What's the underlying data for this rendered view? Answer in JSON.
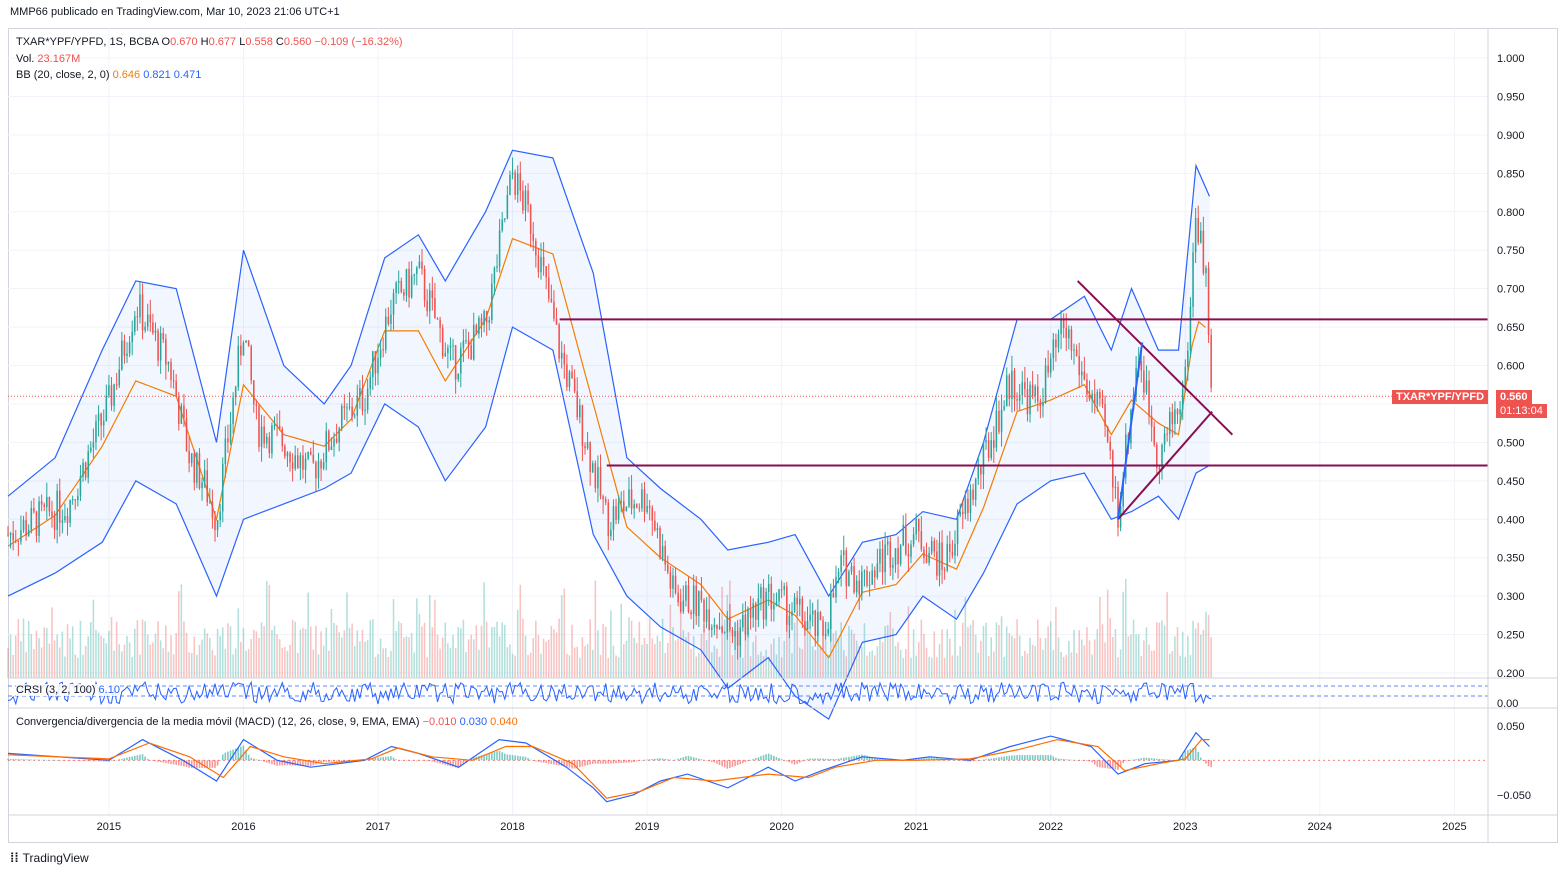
{
  "credit": "MMP66 publicado en TradingView.com, Mar 10, 2023 21:06 UTC+1",
  "legend": {
    "symbol": "TXAR*YPF/YPFD, 1S, BCBA",
    "o_label": "O",
    "o_value": "0.670",
    "h_label": "H",
    "h_value": "0.677",
    "l_label": "L",
    "l_value": "0.558",
    "c_label": "C",
    "c_value": "0.560",
    "change": "−0.109 (−16.32%)",
    "vol_label": "Vol.",
    "vol_value": "23.167M",
    "bb_label": "BB (20, close, 2, 0)",
    "bb_basis": "0.646",
    "bb_upper": "0.821",
    "bb_lower": "0.471"
  },
  "crsi_label": "CRSI (3, 2, 100)",
  "crsi_value": "6.10",
  "macd_label": "Convergencia/divergencia de la media móvil (MACD) (12, 26, close, 9, EMA, EMA)",
  "macd_values": [
    "−0.010",
    "0.030",
    "0.040"
  ],
  "price_tag": {
    "symbol": "TXAR*YPF/YPFD",
    "price": "0.560",
    "countdown": "01:13:04"
  },
  "footer": "TradingView",
  "colors": {
    "up": "#26a69a",
    "down": "#ef5350",
    "bb_band": "#2962ff",
    "bb_basis": "#f57c00",
    "trendline": "#880e4f",
    "macd": "#2962ff",
    "signal": "#ff6d00"
  },
  "chart_data": [
    {
      "type": "candlestick",
      "title": "TXAR*YPF/YPFD, 1S, BCBA",
      "x_ticks": [
        "2015",
        "2016",
        "2017",
        "2018",
        "2019",
        "2020",
        "2021",
        "2022",
        "2023",
        "2024",
        "2025"
      ],
      "y_ticks": [
        "1.000",
        "0.950",
        "0.900",
        "0.850",
        "0.800",
        "0.750",
        "0.700",
        "0.650",
        "0.600",
        "0.550",
        "0.500",
        "0.450",
        "0.400",
        "0.350",
        "0.300",
        "0.250",
        "0.200"
      ],
      "ylim": [
        0.2,
        1.0
      ],
      "xlim": [
        2014.25,
        2025.25
      ],
      "price_path": [
        [
          2014.25,
          0.38
        ],
        [
          2014.7,
          0.42
        ],
        [
          2015.0,
          0.55
        ],
        [
          2015.2,
          0.68
        ],
        [
          2015.45,
          0.6
        ],
        [
          2015.6,
          0.48
        ],
        [
          2015.7,
          0.45
        ],
        [
          2015.8,
          0.4
        ],
        [
          2016.0,
          0.65
        ],
        [
          2016.1,
          0.52
        ],
        [
          2016.3,
          0.5
        ],
        [
          2016.5,
          0.46
        ],
        [
          2016.7,
          0.52
        ],
        [
          2016.9,
          0.56
        ],
        [
          2017.1,
          0.68
        ],
        [
          2017.3,
          0.72
        ],
        [
          2017.55,
          0.6
        ],
        [
          2017.8,
          0.65
        ],
        [
          2018.0,
          0.85
        ],
        [
          2018.15,
          0.78
        ],
        [
          2018.35,
          0.62
        ],
        [
          2018.55,
          0.5
        ],
        [
          2018.7,
          0.4
        ],
        [
          2018.85,
          0.42
        ],
        [
          2019.0,
          0.43
        ],
        [
          2019.2,
          0.3
        ],
        [
          2019.4,
          0.29
        ],
        [
          2019.65,
          0.25
        ],
        [
          2019.9,
          0.3
        ],
        [
          2020.1,
          0.28
        ],
        [
          2020.3,
          0.25
        ],
        [
          2020.45,
          0.34
        ],
        [
          2020.6,
          0.32
        ],
        [
          2020.8,
          0.36
        ],
        [
          2021.0,
          0.38
        ],
        [
          2021.2,
          0.34
        ],
        [
          2021.45,
          0.45
        ],
        [
          2021.7,
          0.58
        ],
        [
          2021.9,
          0.55
        ],
        [
          2022.1,
          0.65
        ],
        [
          2022.25,
          0.58
        ],
        [
          2022.4,
          0.52
        ],
        [
          2022.5,
          0.41
        ],
        [
          2022.65,
          0.62
        ],
        [
          2022.8,
          0.48
        ],
        [
          2022.95,
          0.55
        ],
        [
          2023.0,
          0.58
        ],
        [
          2023.08,
          0.8
        ],
        [
          2023.15,
          0.72
        ],
        [
          2023.2,
          0.56
        ]
      ],
      "bollinger": {
        "upper": [
          [
            2014.25,
            0.43
          ],
          [
            2014.6,
            0.48
          ],
          [
            2014.95,
            0.62
          ],
          [
            2015.2,
            0.71
          ],
          [
            2015.5,
            0.7
          ],
          [
            2015.8,
            0.5
          ],
          [
            2016.0,
            0.75
          ],
          [
            2016.3,
            0.6
          ],
          [
            2016.6,
            0.55
          ],
          [
            2016.8,
            0.6
          ],
          [
            2017.05,
            0.74
          ],
          [
            2017.3,
            0.77
          ],
          [
            2017.5,
            0.71
          ],
          [
            2017.8,
            0.8
          ],
          [
            2018.0,
            0.88
          ],
          [
            2018.3,
            0.87
          ],
          [
            2018.6,
            0.72
          ],
          [
            2018.85,
            0.48
          ],
          [
            2019.1,
            0.44
          ],
          [
            2019.4,
            0.4
          ],
          [
            2019.6,
            0.36
          ],
          [
            2019.9,
            0.37
          ],
          [
            2020.1,
            0.38
          ],
          [
            2020.35,
            0.3
          ],
          [
            2020.6,
            0.37
          ],
          [
            2020.85,
            0.38
          ],
          [
            2021.05,
            0.41
          ],
          [
            2021.3,
            0.4
          ],
          [
            2021.5,
            0.5
          ],
          [
            2021.75,
            0.66
          ],
          [
            2022.0,
            0.66
          ],
          [
            2022.25,
            0.69
          ],
          [
            2022.45,
            0.62
          ],
          [
            2022.6,
            0.7
          ],
          [
            2022.8,
            0.62
          ],
          [
            2022.95,
            0.62
          ],
          [
            2023.08,
            0.86
          ],
          [
            2023.18,
            0.82
          ]
        ],
        "lower": [
          [
            2014.25,
            0.3
          ],
          [
            2014.6,
            0.33
          ],
          [
            2014.95,
            0.37
          ],
          [
            2015.2,
            0.45
          ],
          [
            2015.5,
            0.42
          ],
          [
            2015.8,
            0.3
          ],
          [
            2016.0,
            0.4
          ],
          [
            2016.3,
            0.42
          ],
          [
            2016.6,
            0.44
          ],
          [
            2016.8,
            0.46
          ],
          [
            2017.05,
            0.55
          ],
          [
            2017.3,
            0.52
          ],
          [
            2017.5,
            0.45
          ],
          [
            2017.8,
            0.52
          ],
          [
            2018.0,
            0.65
          ],
          [
            2018.3,
            0.62
          ],
          [
            2018.6,
            0.38
          ],
          [
            2018.85,
            0.3
          ],
          [
            2019.1,
            0.26
          ],
          [
            2019.4,
            0.23
          ],
          [
            2019.6,
            0.18
          ],
          [
            2019.9,
            0.22
          ],
          [
            2020.1,
            0.17
          ],
          [
            2020.35,
            0.14
          ],
          [
            2020.6,
            0.24
          ],
          [
            2020.85,
            0.25
          ],
          [
            2021.05,
            0.3
          ],
          [
            2021.3,
            0.27
          ],
          [
            2021.5,
            0.33
          ],
          [
            2021.75,
            0.42
          ],
          [
            2022.0,
            0.45
          ],
          [
            2022.25,
            0.46
          ],
          [
            2022.45,
            0.4
          ],
          [
            2022.6,
            0.41
          ],
          [
            2022.8,
            0.43
          ],
          [
            2022.95,
            0.4
          ],
          [
            2023.08,
            0.46
          ],
          [
            2023.18,
            0.47
          ]
        ]
      },
      "horizontal_levels": [
        {
          "price": 0.66,
          "from": 2018.35,
          "to": 2025.25
        },
        {
          "price": 0.47,
          "from": 2018.7,
          "to": 2025.25
        }
      ],
      "trendlines": [
        [
          [
            2022.2,
            0.71
          ],
          [
            2023.35,
            0.51
          ]
        ],
        [
          [
            2022.5,
            0.4
          ],
          [
            2023.2,
            0.54
          ]
        ],
        [
          [
            2022.5,
            0.4
          ],
          [
            2022.68,
            0.63
          ]
        ]
      ],
      "last_price": 0.56
    },
    {
      "type": "line",
      "title": "CRSI (3, 2, 100)",
      "y_ticks": [
        "0.00"
      ],
      "value": 6.1
    },
    {
      "type": "line",
      "title": "Convergencia/divergencia de la media móvil (MACD) (12, 26, close, 9, EMA, EMA)",
      "y_ticks": [
        "0.050",
        "−0.050"
      ],
      "ylim": [
        -0.075,
        0.07
      ],
      "series": [
        {
          "name": "MACD",
          "points": [
            [
              2014.25,
              0.01
            ],
            [
              2015.0,
              0.0
            ],
            [
              2015.25,
              0.03
            ],
            [
              2015.55,
              0.0
            ],
            [
              2015.8,
              -0.03
            ],
            [
              2016.0,
              0.03
            ],
            [
              2016.25,
              0.0
            ],
            [
              2016.5,
              -0.01
            ],
            [
              2016.9,
              0.0
            ],
            [
              2017.1,
              0.02
            ],
            [
              2017.3,
              0.01
            ],
            [
              2017.6,
              -0.01
            ],
            [
              2017.9,
              0.03
            ],
            [
              2018.1,
              0.025
            ],
            [
              2018.4,
              -0.01
            ],
            [
              2018.6,
              -0.04
            ],
            [
              2018.7,
              -0.06
            ],
            [
              2018.9,
              -0.05
            ],
            [
              2019.1,
              -0.03
            ],
            [
              2019.3,
              -0.02
            ],
            [
              2019.6,
              -0.04
            ],
            [
              2019.9,
              -0.01
            ],
            [
              2020.1,
              -0.03
            ],
            [
              2020.3,
              -0.015
            ],
            [
              2020.6,
              0.005
            ],
            [
              2020.9,
              0.0
            ],
            [
              2021.1,
              0.005
            ],
            [
              2021.4,
              0.0
            ],
            [
              2021.7,
              0.02
            ],
            [
              2022.0,
              0.035
            ],
            [
              2022.3,
              0.02
            ],
            [
              2022.5,
              -0.02
            ],
            [
              2022.7,
              -0.005
            ],
            [
              2022.95,
              0.0
            ],
            [
              2023.08,
              0.04
            ],
            [
              2023.18,
              0.02
            ]
          ]
        },
        {
          "name": "Signal",
          "points": [
            [
              2014.25,
              0.008
            ],
            [
              2015.0,
              0.002
            ],
            [
              2015.3,
              0.025
            ],
            [
              2015.6,
              0.005
            ],
            [
              2015.85,
              -0.025
            ],
            [
              2016.05,
              0.02
            ],
            [
              2016.3,
              0.005
            ],
            [
              2016.6,
              -0.005
            ],
            [
              2016.95,
              0.002
            ],
            [
              2017.15,
              0.018
            ],
            [
              2017.4,
              0.005
            ],
            [
              2017.7,
              0.0
            ],
            [
              2017.95,
              0.02
            ],
            [
              2018.15,
              0.02
            ],
            [
              2018.45,
              -0.005
            ],
            [
              2018.7,
              -0.055
            ],
            [
              2018.95,
              -0.045
            ],
            [
              2019.2,
              -0.025
            ],
            [
              2019.5,
              -0.03
            ],
            [
              2019.9,
              -0.02
            ],
            [
              2020.2,
              -0.025
            ],
            [
              2020.4,
              -0.01
            ],
            [
              2020.7,
              0.0
            ],
            [
              2021.0,
              0.0
            ],
            [
              2021.4,
              0.002
            ],
            [
              2021.75,
              0.015
            ],
            [
              2022.05,
              0.03
            ],
            [
              2022.35,
              0.02
            ],
            [
              2022.55,
              -0.015
            ],
            [
              2022.8,
              -0.005
            ],
            [
              2023.0,
              0.002
            ],
            [
              2023.12,
              0.03
            ],
            [
              2023.18,
              0.03
            ]
          ]
        }
      ],
      "histogram_last": 0.04
    }
  ]
}
